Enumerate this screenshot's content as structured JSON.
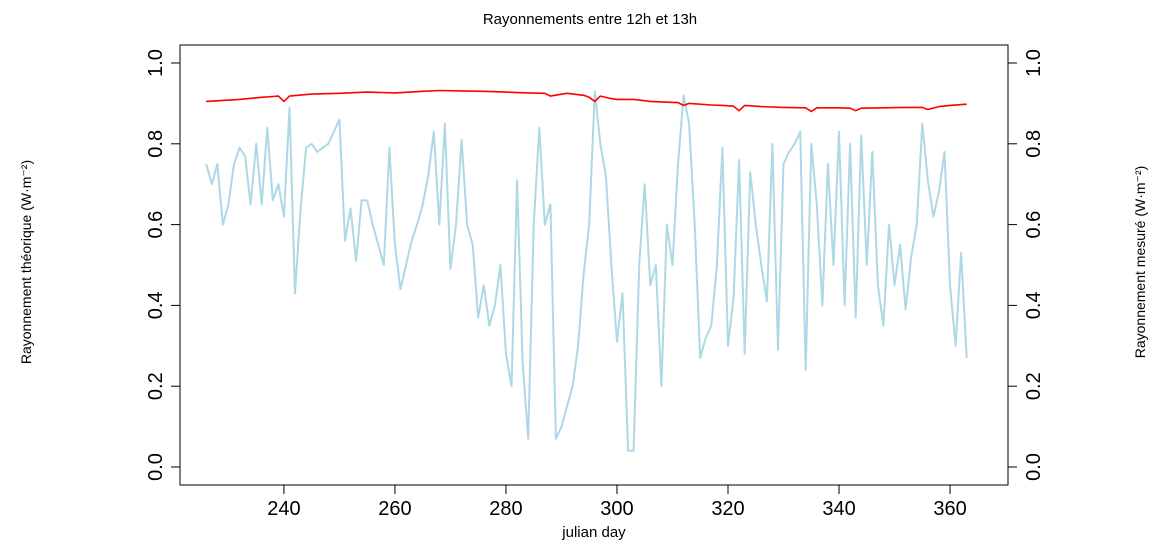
{
  "chart_data": {
    "type": "line",
    "title": "Rayonnements entre 12h et 13h",
    "xlabel": "julian day",
    "ylabel_left": "Rayonnement théorique (W·m⁻²)",
    "ylabel_right": "Rayonnement mesuré (W·m⁻²)",
    "xlim": [
      222,
      369
    ],
    "ylim": [
      0,
      1
    ],
    "x_ticks": [
      240,
      260,
      280,
      300,
      320,
      340,
      360
    ],
    "x_tick_labels": [
      "240",
      "260",
      "280",
      "300",
      "320",
      "340",
      "360"
    ],
    "y_ticks": [
      0,
      0.2,
      0.4,
      0.6,
      0.8,
      1
    ],
    "y_tick_labels": [
      "0.0",
      "0.2",
      "0.4",
      "0.6",
      "0.8",
      "1.0"
    ],
    "grid": false,
    "series": [
      {
        "color": "#ff0000",
        "x": [
          226,
          232,
          236,
          238,
          239,
          240,
          241,
          245,
          250,
          255,
          260,
          265,
          268,
          272,
          276,
          280,
          284,
          287,
          288,
          291,
          294,
          295,
          296,
          297,
          299,
          300,
          303,
          306,
          309,
          311,
          312,
          313,
          315,
          317,
          319,
          321,
          322,
          323,
          326,
          330,
          334,
          335,
          336,
          340,
          342,
          343,
          344,
          348,
          352,
          355,
          356,
          358,
          360,
          363
        ],
        "y": [
          0.905,
          0.91,
          0.915,
          0.917,
          0.918,
          0.905,
          0.918,
          0.923,
          0.925,
          0.928,
          0.926,
          0.93,
          0.932,
          0.931,
          0.93,
          0.928,
          0.926,
          0.925,
          0.918,
          0.925,
          0.92,
          0.915,
          0.905,
          0.918,
          0.912,
          0.91,
          0.91,
          0.905,
          0.903,
          0.902,
          0.895,
          0.9,
          0.898,
          0.896,
          0.895,
          0.893,
          0.882,
          0.895,
          0.892,
          0.89,
          0.889,
          0.88,
          0.889,
          0.889,
          0.888,
          0.882,
          0.888,
          0.889,
          0.89,
          0.89,
          0.885,
          0.892,
          0.895,
          0.898
        ]
      },
      {
        "color": "#add8e6",
        "x": [
          226,
          227,
          228,
          229,
          230,
          231,
          232,
          233,
          234,
          235,
          236,
          237,
          238,
          239,
          240,
          241,
          242,
          243,
          244,
          245,
          246,
          247,
          248,
          249,
          250,
          251,
          252,
          253,
          254,
          255,
          256,
          257,
          258,
          259,
          260,
          261,
          262,
          263,
          264,
          265,
          266,
          267,
          268,
          269,
          270,
          271,
          272,
          273,
          274,
          275,
          276,
          277,
          278,
          279,
          280,
          281,
          282,
          283,
          284,
          285,
          286,
          287,
          288,
          289,
          290,
          291,
          292,
          293,
          294,
          295,
          296,
          297,
          298,
          299,
          300,
          301,
          302,
          303,
          304,
          305,
          306,
          307,
          308,
          309,
          310,
          311,
          312,
          313,
          314,
          315,
          316,
          317,
          318,
          319,
          320,
          321,
          322,
          323,
          324,
          325,
          326,
          327,
          328,
          329,
          330,
          331,
          332,
          333,
          334,
          335,
          336,
          337,
          338,
          339,
          340,
          341,
          342,
          343,
          344,
          345,
          346,
          347,
          348,
          349,
          350,
          351,
          352,
          353,
          354,
          355,
          356,
          357,
          358,
          359,
          360,
          361,
          362,
          363
        ],
        "y": [
          0.75,
          0.7,
          0.75,
          0.6,
          0.65,
          0.75,
          0.79,
          0.77,
          0.65,
          0.8,
          0.65,
          0.84,
          0.66,
          0.7,
          0.62,
          0.89,
          0.43,
          0.64,
          0.79,
          0.8,
          0.78,
          0.79,
          0.8,
          0.83,
          0.86,
          0.56,
          0.64,
          0.51,
          0.66,
          0.66,
          0.6,
          0.55,
          0.5,
          0.79,
          0.55,
          0.44,
          0.5,
          0.56,
          0.6,
          0.65,
          0.72,
          0.83,
          0.6,
          0.85,
          0.49,
          0.6,
          0.81,
          0.6,
          0.55,
          0.37,
          0.45,
          0.35,
          0.4,
          0.5,
          0.28,
          0.2,
          0.71,
          0.26,
          0.07,
          0.6,
          0.84,
          0.6,
          0.65,
          0.07,
          0.1,
          0.15,
          0.2,
          0.3,
          0.48,
          0.6,
          0.93,
          0.8,
          0.72,
          0.5,
          0.31,
          0.43,
          0.04,
          0.04,
          0.5,
          0.7,
          0.45,
          0.5,
          0.2,
          0.6,
          0.5,
          0.75,
          0.92,
          0.85,
          0.6,
          0.27,
          0.32,
          0.35,
          0.5,
          0.79,
          0.3,
          0.42,
          0.76,
          0.28,
          0.73,
          0.6,
          0.5,
          0.41,
          0.8,
          0.29,
          0.75,
          0.78,
          0.8,
          0.83,
          0.24,
          0.8,
          0.65,
          0.4,
          0.75,
          0.5,
          0.83,
          0.4,
          0.8,
          0.37,
          0.82,
          0.5,
          0.78,
          0.45,
          0.35,
          0.6,
          0.45,
          0.55,
          0.39,
          0.52,
          0.6,
          0.85,
          0.71,
          0.62,
          0.68,
          0.78,
          0.45,
          0.3,
          0.53,
          0.27
        ]
      }
    ]
  }
}
